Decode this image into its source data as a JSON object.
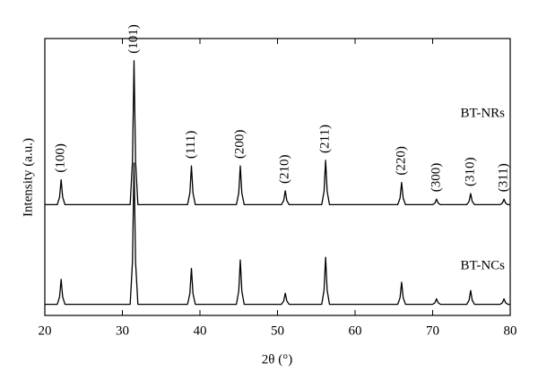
{
  "chart_data": {
    "type": "line",
    "xlabel": "2θ (°)",
    "ylabel": "Intensity (a.u.)",
    "x": [
      20,
      21.6,
      21.9,
      22.1,
      22.3,
      22.6,
      31.0,
      31.3,
      31.5,
      31.7,
      32.0,
      38.4,
      38.7,
      38.9,
      39.1,
      39.4,
      44.7,
      45.0,
      45.2,
      45.4,
      45.7,
      50.5,
      50.8,
      51.0,
      51.2,
      51.5,
      55.7,
      56.0,
      56.2,
      56.4,
      56.7,
      65.5,
      65.8,
      66.0,
      66.2,
      66.5,
      70.0,
      70.3,
      70.5,
      70.7,
      71.0,
      74.4,
      74.7,
      74.9,
      75.1,
      75.4,
      78.7,
      79.0,
      79.2,
      79.4,
      79.7,
      80
    ],
    "series": [
      {
        "name": "BT-NRs",
        "color": "#000000",
        "values": [
          40,
          40,
          42.7,
          49,
          42.7,
          40,
          40,
          55.6,
          92,
          55.6,
          40,
          40,
          44.2,
          54,
          44.2,
          40,
          40,
          44.2,
          54,
          44.2,
          40,
          40,
          41.5,
          45,
          41.5,
          40,
          40,
          44.8,
          56,
          44.8,
          40,
          40,
          42.4,
          48,
          42.4,
          40,
          40,
          40.6,
          42,
          40.6,
          40,
          40,
          41.2,
          44,
          41.2,
          40,
          40,
          40.6,
          42,
          40.6,
          40,
          40
        ]
      },
      {
        "name": "BT-NCs",
        "color": "#000000",
        "values": [
          4,
          4,
          6.7,
          13,
          6.7,
          4,
          4,
          19.3,
          55,
          19.3,
          4,
          4,
          7.9,
          17,
          7.9,
          4,
          4,
          8.8,
          20,
          8.8,
          4,
          4,
          5.2,
          8,
          5.2,
          4,
          4,
          9.1,
          21,
          9.1,
          4,
          4,
          6.4,
          12,
          6.4,
          4,
          4,
          4.6,
          6,
          4.6,
          4,
          4,
          5.5,
          9,
          5.5,
          4,
          4,
          4.6,
          6,
          4.6,
          4,
          4
        ]
      }
    ],
    "annotations": [
      {
        "text": "(100)",
        "x": 22.1
      },
      {
        "text": "(101)",
        "x": 31.5
      },
      {
        "text": "(111)",
        "x": 38.9
      },
      {
        "text": "(200)",
        "x": 45.2
      },
      {
        "text": "(210)",
        "x": 51.0
      },
      {
        "text": "(211)",
        "x": 56.2
      },
      {
        "text": "(220)",
        "x": 66.0
      },
      {
        "text": "(300)",
        "x": 70.5
      },
      {
        "text": "(310)",
        "x": 74.9
      },
      {
        "text": "(311)",
        "x": 79.2
      }
    ],
    "xlim": [
      20,
      80
    ],
    "xticks": [
      20,
      30,
      40,
      50,
      60,
      70,
      80
    ],
    "ylim": [
      0,
      100
    ],
    "grid": false
  }
}
